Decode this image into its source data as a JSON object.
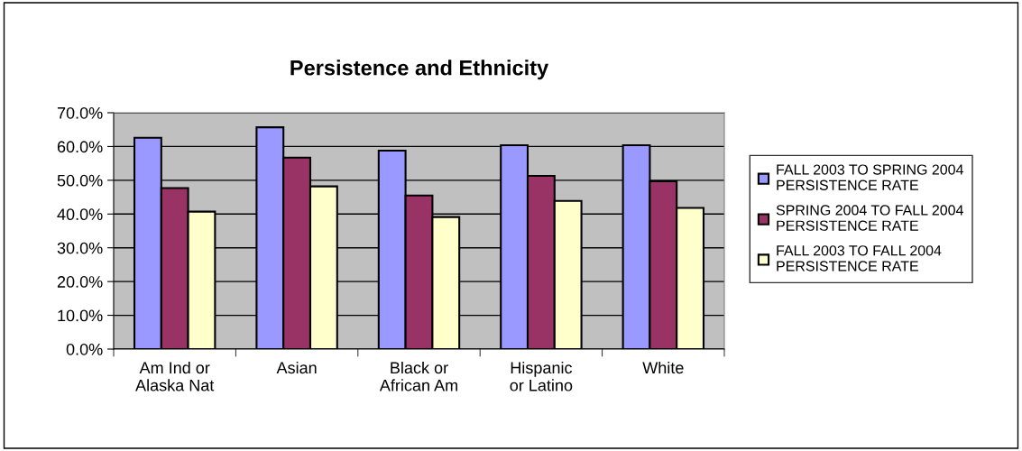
{
  "chart_data": {
    "type": "bar",
    "title": "Persistence and Ethnicity",
    "categories": [
      "Am Ind or\nAlaska Nat",
      "Asian",
      "Black or\nAfrican Am",
      "Hispanic\nor Latino",
      "White"
    ],
    "series": [
      {
        "name": "FALL 2003 TO SPRING 2004\nPERSISTENCE RATE",
        "color": "#9999ff",
        "values": [
          62.6,
          65.7,
          58.8,
          60.4,
          60.4
        ]
      },
      {
        "name": "SPRING 2004 TO FALL 2004\nPERSISTENCE RATE",
        "color": "#993366",
        "values": [
          47.7,
          56.7,
          45.5,
          51.3,
          49.7
        ]
      },
      {
        "name": "FALL 2003 TO FALL 2004\nPERSISTENCE RATE",
        "color": "#ffffcc",
        "values": [
          40.7,
          48.2,
          39.1,
          43.9,
          41.8
        ]
      }
    ],
    "ylim": [
      0,
      70
    ],
    "yticks": [
      {
        "value": 0,
        "label": "0.0%"
      },
      {
        "value": 10,
        "label": "10.0%"
      },
      {
        "value": 20,
        "label": "20.0%"
      },
      {
        "value": 30,
        "label": "30.0%"
      },
      {
        "value": 40,
        "label": "40.0%"
      },
      {
        "value": 50,
        "label": "50.0%"
      },
      {
        "value": 60,
        "label": "60.0%"
      },
      {
        "value": 70,
        "label": "70.0%"
      }
    ],
    "grid": "y",
    "legend": "right"
  }
}
